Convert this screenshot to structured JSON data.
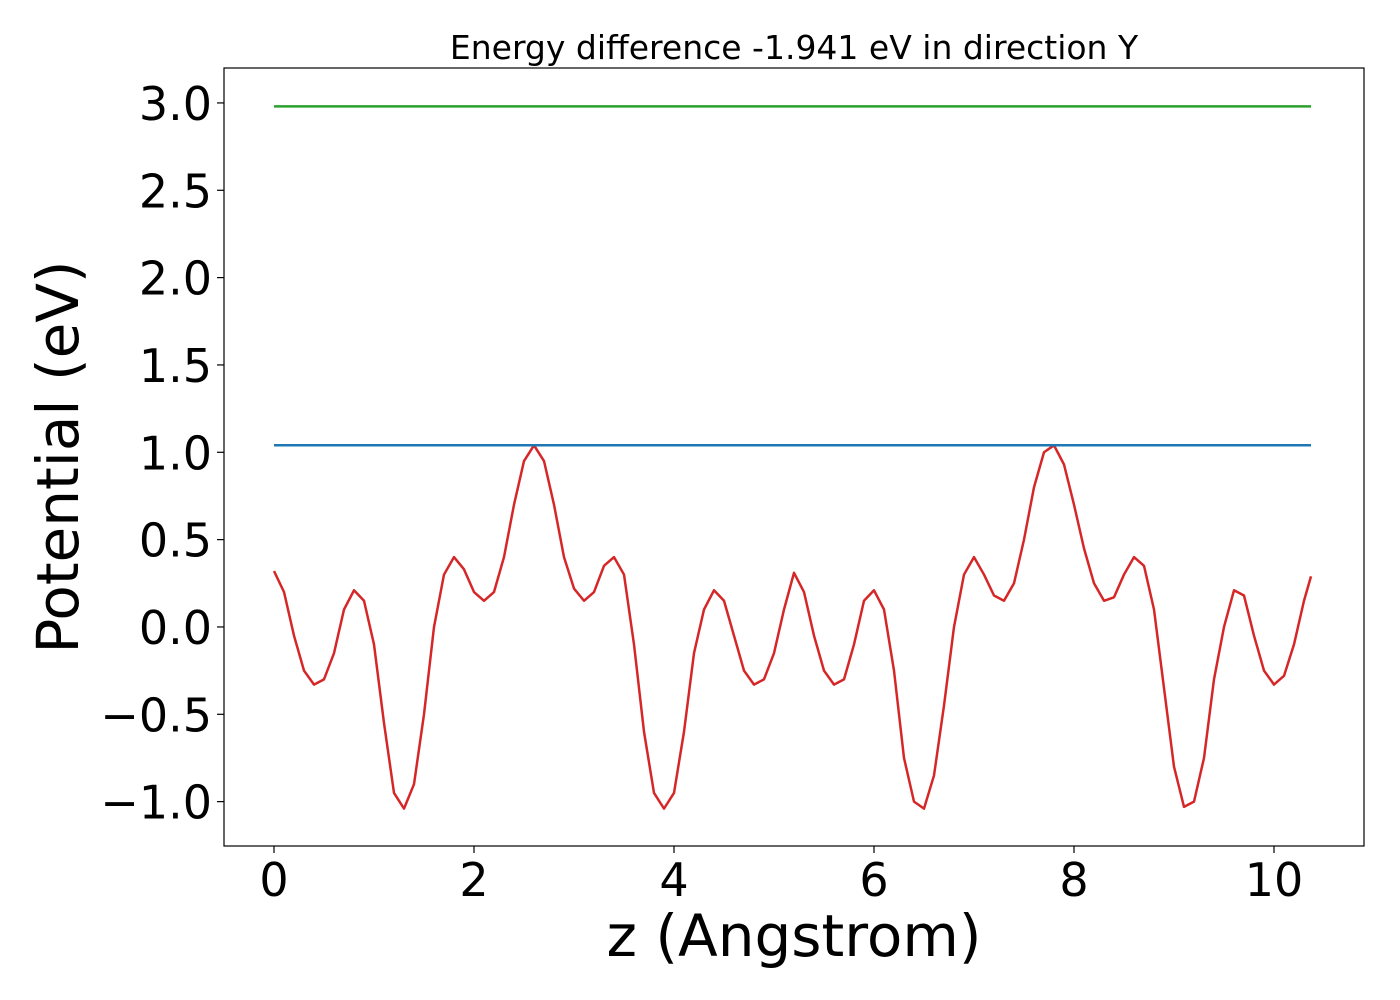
{
  "chart_data": {
    "type": "line",
    "title": "Energy difference -1.941 eV in direction Y",
    "xlabel": "z (Angstrom)",
    "ylabel": "Potential (eV)",
    "xlim": [
      -0.5,
      10.9
    ],
    "ylim": [
      -1.254,
      3.2
    ],
    "xticks": [
      0,
      2,
      4,
      6,
      8,
      10
    ],
    "yticks": [
      {
        "value": -1.0,
        "label": "−1.0"
      },
      {
        "value": -0.5,
        "label": "−0.5"
      },
      {
        "value": 0,
        "label": "0.0"
      },
      0.5,
      {
        "value": 1.0,
        "label": "1.0"
      },
      1.5,
      {
        "value": 2.0,
        "label": "2.0"
      },
      2.5,
      {
        "value": 3.0,
        "label": "3.0"
      }
    ],
    "grid": false,
    "series": [
      {
        "color": "#d62728",
        "x": [
          0.0,
          0.1,
          0.2,
          0.3,
          0.4,
          0.5,
          0.6,
          0.7,
          0.8,
          0.9,
          1.0,
          1.1,
          1.2,
          1.3,
          1.4,
          1.5,
          1.6,
          1.7,
          1.8,
          1.9,
          2.0,
          2.1,
          2.2,
          2.3,
          2.4,
          2.5,
          2.6,
          2.7,
          2.8,
          2.9,
          3.0,
          3.1,
          3.2,
          3.3,
          3.4,
          3.5,
          3.6,
          3.7,
          3.8,
          3.9,
          4.0,
          4.1,
          4.2,
          4.3,
          4.4,
          4.5,
          4.6,
          4.7,
          4.8,
          4.9,
          5.0,
          5.1,
          5.2,
          5.3,
          5.4,
          5.5,
          5.6,
          5.7,
          5.8,
          5.9,
          6.0,
          6.1,
          6.2,
          6.3,
          6.4,
          6.5,
          6.6,
          6.7,
          6.8,
          6.9,
          7.0,
          7.1,
          7.2,
          7.3,
          7.4,
          7.5,
          7.6,
          7.7,
          7.8,
          7.9,
          8.0,
          8.1,
          8.2,
          8.3,
          8.4,
          8.5,
          8.6,
          8.7,
          8.8,
          8.9,
          9.0,
          9.1,
          9.2,
          9.3,
          9.4,
          9.5,
          9.6,
          9.7,
          9.8,
          9.9,
          10.0,
          10.1,
          10.2,
          10.3,
          10.37
        ],
        "values": [
          0.32,
          0.2,
          -0.05,
          -0.25,
          -0.33,
          -0.3,
          -0.15,
          0.1,
          0.21,
          0.15,
          -0.1,
          -0.55,
          -0.95,
          -1.04,
          -0.9,
          -0.5,
          0.0,
          0.3,
          0.4,
          0.33,
          0.2,
          0.15,
          0.2,
          0.4,
          0.7,
          0.95,
          1.04,
          0.95,
          0.7,
          0.4,
          0.22,
          0.15,
          0.2,
          0.35,
          0.4,
          0.3,
          -0.1,
          -0.6,
          -0.95,
          -1.04,
          -0.95,
          -0.6,
          -0.15,
          0.1,
          0.21,
          0.15,
          -0.05,
          -0.25,
          -0.33,
          -0.3,
          -0.15,
          0.1,
          0.31,
          0.2,
          -0.05,
          -0.25,
          -0.33,
          -0.3,
          -0.1,
          0.15,
          0.21,
          0.1,
          -0.25,
          -0.75,
          -1.0,
          -1.04,
          -0.85,
          -0.45,
          0.0,
          0.3,
          0.4,
          0.3,
          0.18,
          0.15,
          0.25,
          0.5,
          0.8,
          1.0,
          1.04,
          0.93,
          0.7,
          0.45,
          0.25,
          0.15,
          0.17,
          0.3,
          0.4,
          0.35,
          0.1,
          -0.35,
          -0.8,
          -1.03,
          -1.0,
          -0.75,
          -0.3,
          0.0,
          0.21,
          0.18,
          -0.05,
          -0.25,
          -0.33,
          -0.28,
          -0.1,
          0.15,
          0.29
        ]
      },
      {
        "color": "#1f77b4",
        "x": [
          0,
          10.37
        ],
        "values": [
          1.04,
          1.04
        ]
      },
      {
        "color": "#2ca02c",
        "x": [
          0,
          10.37
        ],
        "values": [
          2.98,
          2.98
        ]
      }
    ]
  }
}
